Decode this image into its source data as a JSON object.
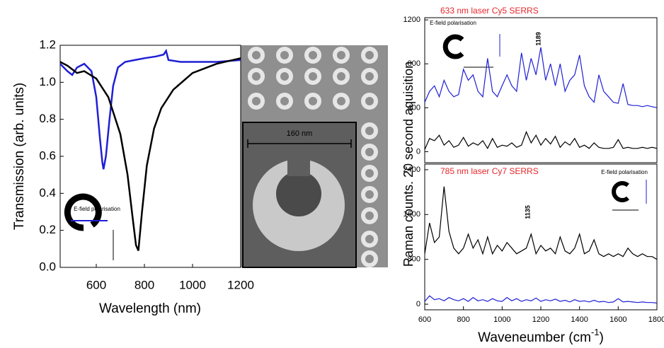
{
  "chart_data": [
    {
      "type": "line",
      "xlabel": "Wavelength (nm)",
      "ylabel": "Transmission  (arb. units)",
      "xlim": [
        450,
        1200
      ],
      "xticks": [
        600,
        800,
        1000,
        1200
      ],
      "ylim": [
        0,
        1.2
      ],
      "yticks": [
        {
          "value": 0,
          "label": "0.0"
        },
        0.2,
        0.4,
        0.6,
        0.8,
        {
          "value": 1,
          "label": "1.0"
        },
        1.2
      ],
      "note": "E-field polarisation",
      "series": [
        {
          "color": "#1f1fd6",
          "x": [
            450,
            480,
            500,
            520,
            550,
            580,
            600,
            615,
            625,
            630,
            640,
            655,
            670,
            690,
            720,
            760,
            800,
            850,
            880,
            890,
            900,
            950,
            1000,
            1100,
            1200
          ],
          "values": [
            1.1,
            1.06,
            1.04,
            1.08,
            1.1,
            1.06,
            0.92,
            0.7,
            0.57,
            0.53,
            0.6,
            0.8,
            0.98,
            1.08,
            1.11,
            1.12,
            1.13,
            1.14,
            1.15,
            1.17,
            1.12,
            1.11,
            1.11,
            1.11,
            1.12
          ]
        },
        {
          "color": "#000000",
          "x": [
            450,
            480,
            500,
            520,
            550,
            600,
            650,
            700,
            730,
            750,
            765,
            775,
            790,
            810,
            840,
            870,
            920,
            1000,
            1100,
            1200
          ],
          "values": [
            1.11,
            1.09,
            1.07,
            1.05,
            1.06,
            1.02,
            0.92,
            0.72,
            0.5,
            0.28,
            0.12,
            0.09,
            0.3,
            0.55,
            0.75,
            0.86,
            0.96,
            1.05,
            1.1,
            1.13
          ]
        }
      ]
    },
    {
      "type": "line",
      "title": "633 nm laser Cy5 SERRS",
      "title_color": "#e8262b",
      "ylabel": "Raman counts. 20 second aquisition",
      "xlim": [
        600,
        1800
      ],
      "ylim": [
        -100,
        1220
      ],
      "yticks": [
        0,
        400,
        800,
        1200
      ],
      "note": "E-field polarisation",
      "annotations": [
        {
          "text": "1189",
          "x": 1189
        }
      ],
      "x": [
        600,
        625,
        650,
        675,
        700,
        725,
        750,
        775,
        800,
        825,
        850,
        875,
        900,
        925,
        950,
        975,
        1000,
        1025,
        1050,
        1075,
        1100,
        1125,
        1150,
        1175,
        1200,
        1225,
        1250,
        1275,
        1300,
        1325,
        1350,
        1375,
        1400,
        1425,
        1450,
        1475,
        1500,
        1525,
        1550,
        1575,
        1600,
        1625,
        1650,
        1675,
        1700,
        1725,
        1750,
        1775,
        1800
      ],
      "series": [
        {
          "color": "#1f1fd6",
          "values": [
            450,
            550,
            600,
            500,
            650,
            550,
            500,
            520,
            750,
            650,
            700,
            550,
            500,
            850,
            550,
            500,
            600,
            700,
            600,
            550,
            900,
            650,
            850,
            700,
            950,
            650,
            800,
            600,
            800,
            550,
            650,
            700,
            880,
            600,
            500,
            450,
            700,
            550,
            500,
            450,
            440,
            620,
            430,
            420,
            420,
            410,
            420,
            410,
            400
          ]
        },
        {
          "color": "#000000",
          "values": [
            20,
            120,
            100,
            150,
            60,
            100,
            40,
            60,
            130,
            50,
            80,
            60,
            100,
            30,
            120,
            40,
            60,
            50,
            80,
            40,
            60,
            180,
            80,
            150,
            60,
            120,
            70,
            140,
            40,
            90,
            60,
            120,
            40,
            60,
            30,
            80,
            40,
            30,
            30,
            40,
            110,
            30,
            40,
            30,
            30,
            40,
            30,
            40,
            30
          ]
        }
      ]
    },
    {
      "type": "line",
      "title": "785 nm laser Cy7 SERRS",
      "title_color": "#e8262b",
      "xlabel": [
        "Waveneumber (cm",
        "-1",
        ")"
      ],
      "xlim": [
        600,
        1800
      ],
      "xticks": [
        600,
        800,
        1000,
        1200,
        1400,
        1600,
        1800
      ],
      "ylim": [
        -100,
        2500
      ],
      "yticks": [
        0,
        800,
        1600,
        2400
      ],
      "note": "E-field polarisation",
      "annotations": [
        {
          "text": "1135",
          "x": 1135
        }
      ],
      "x": [
        600,
        625,
        650,
        675,
        700,
        725,
        750,
        775,
        800,
        825,
        850,
        875,
        900,
        925,
        950,
        975,
        1000,
        1025,
        1050,
        1075,
        1100,
        1125,
        1150,
        1175,
        1200,
        1225,
        1250,
        1275,
        1300,
        1325,
        1350,
        1375,
        1400,
        1425,
        1450,
        1475,
        1500,
        1525,
        1550,
        1575,
        1600,
        1625,
        1650,
        1675,
        1700,
        1725,
        1750,
        1775,
        1800
      ],
      "series": [
        {
          "color": "#000000",
          "values": [
            900,
            1450,
            1100,
            1200,
            2100,
            1300,
            1000,
            900,
            1000,
            1250,
            1000,
            1150,
            900,
            1200,
            900,
            1050,
            950,
            1100,
            1000,
            900,
            950,
            1000,
            1250,
            900,
            1050,
            950,
            1000,
            900,
            1200,
            950,
            900,
            1000,
            1250,
            900,
            950,
            1150,
            900,
            850,
            900,
            850,
            900,
            850,
            1000,
            900,
            850,
            900,
            850,
            850,
            800
          ]
        },
        {
          "color": "#1f1fd6",
          "values": [
            50,
            150,
            80,
            100,
            60,
            120,
            80,
            60,
            100,
            50,
            120,
            60,
            80,
            50,
            100,
            60,
            50,
            120,
            60,
            100,
            50,
            80,
            60,
            110,
            50,
            80,
            60,
            90,
            50,
            70,
            40,
            80,
            50,
            60,
            40,
            70,
            40,
            50,
            30,
            40,
            100,
            40,
            50,
            40,
            30,
            40,
            30,
            30,
            20
          ]
        }
      ]
    }
  ],
  "image": {
    "scale_label": "160 nm"
  }
}
